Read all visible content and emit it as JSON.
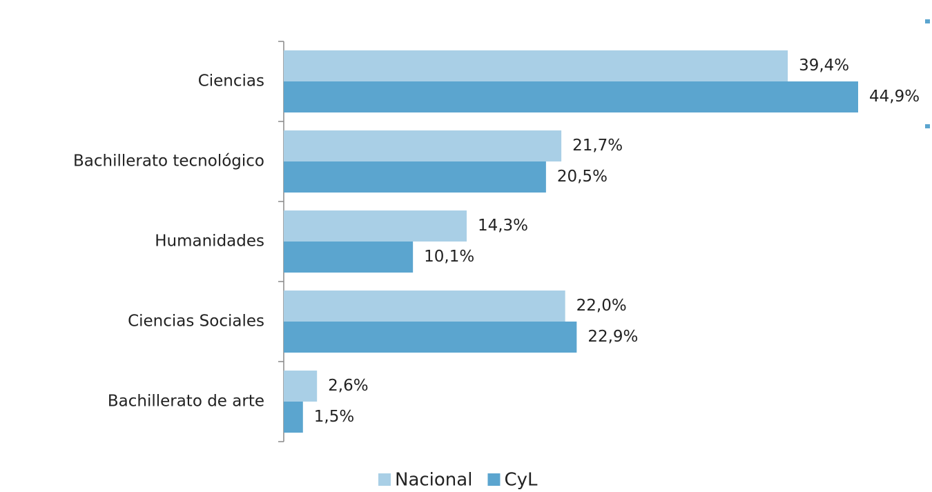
{
  "chart_data": {
    "type": "bar",
    "orientation": "horizontal",
    "categories": [
      "Ciencias",
      "Bachillerato tecnológico",
      "Humanidades",
      "Ciencias Sociales",
      "Bachillerato de arte"
    ],
    "series": [
      {
        "name": "Nacional",
        "color": "#a9cfe6",
        "values": [
          39.4,
          21.7,
          14.3,
          22.0,
          2.6
        ],
        "value_labels": [
          "39,4%",
          "21,7%",
          "14,3%",
          "22,0%",
          "2,6%"
        ]
      },
      {
        "name": "CyL",
        "color": "#5ba5cf",
        "values": [
          44.9,
          20.5,
          10.1,
          22.9,
          1.5
        ],
        "value_labels": [
          "44,9%",
          "20,5%",
          "10,1%",
          "22,9%",
          "1,5%"
        ]
      }
    ],
    "legend": "bottom"
  }
}
